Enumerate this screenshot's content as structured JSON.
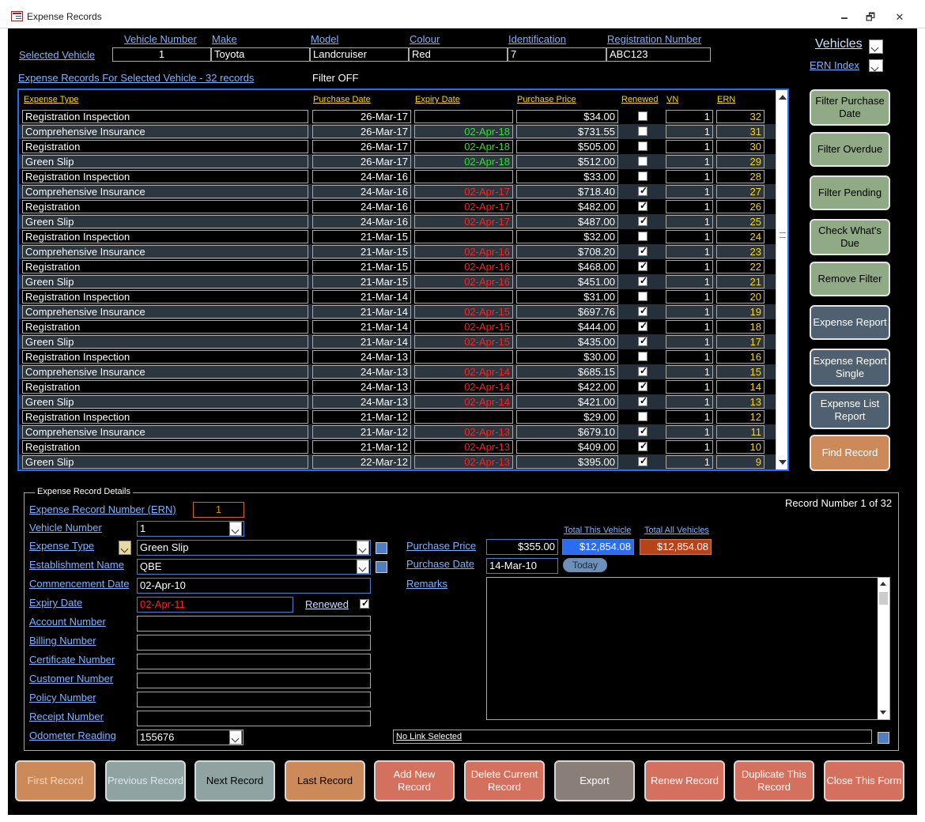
{
  "window": {
    "title": "Expense Records",
    "minimize": "🗕",
    "restore": "🗗",
    "close": "✕"
  },
  "header": {
    "selected_vehicle_label": "Selected Vehicle",
    "columns": [
      "Vehicle Number",
      "Make",
      "Model",
      "Colour",
      "Identification",
      "Registration Number"
    ],
    "values": [
      "1",
      "Toyota",
      "Landcruiser",
      "Red",
      "7",
      "ABC123"
    ],
    "vehicles_label": "Vehicles",
    "ern_index_label": "ERN Index",
    "records_caption": "Expense Records For Selected Vehicle - 32 records",
    "filter_status": "Filter OFF"
  },
  "grid": {
    "headers": [
      "Expense Type",
      "Purchase Date",
      "Expiry Date",
      "Purchase Price",
      "Renewed",
      "VN",
      "ERN"
    ],
    "rows": [
      {
        "type": "Registration Inspection",
        "pdate": "26-Mar-17",
        "edate": "",
        "ecolor": "",
        "price": "$34.00",
        "renewed": false,
        "vn": "1",
        "ern": "32"
      },
      {
        "type": "Comprehensive Insurance",
        "pdate": "26-Mar-17",
        "edate": "02-Apr-18",
        "ecolor": "#2ee02e",
        "price": "$731.55",
        "renewed": false,
        "vn": "1",
        "ern": "31"
      },
      {
        "type": "Registration",
        "pdate": "26-Mar-17",
        "edate": "02-Apr-18",
        "ecolor": "#2ee02e",
        "price": "$505.00",
        "renewed": false,
        "vn": "1",
        "ern": "30"
      },
      {
        "type": "Green Slip",
        "pdate": "26-Mar-17",
        "edate": "02-Apr-18",
        "ecolor": "#2ee02e",
        "price": "$512.00",
        "renewed": false,
        "vn": "1",
        "ern": "29"
      },
      {
        "type": "Registration Inspection",
        "pdate": "24-Mar-16",
        "edate": "",
        "ecolor": "",
        "price": "$33.00",
        "renewed": false,
        "vn": "1",
        "ern": "28"
      },
      {
        "type": "Comprehensive Insurance",
        "pdate": "24-Mar-16",
        "edate": "02-Apr-17",
        "ecolor": "#ff2020",
        "price": "$718.40",
        "renewed": true,
        "vn": "1",
        "ern": "27"
      },
      {
        "type": "Registration",
        "pdate": "24-Mar-16",
        "edate": "02-Apr-17",
        "ecolor": "#ff2020",
        "price": "$482.00",
        "renewed": true,
        "vn": "1",
        "ern": "26"
      },
      {
        "type": "Green Slip",
        "pdate": "24-Mar-16",
        "edate": "02-Apr-17",
        "ecolor": "#ff2020",
        "price": "$487.00",
        "renewed": true,
        "vn": "1",
        "ern": "25"
      },
      {
        "type": "Registration Inspection",
        "pdate": "21-Mar-15",
        "edate": "",
        "ecolor": "",
        "price": "$32.00",
        "renewed": false,
        "vn": "1",
        "ern": "24"
      },
      {
        "type": "Comprehensive Insurance",
        "pdate": "21-Mar-15",
        "edate": "02-Apr-16",
        "ecolor": "#ff2020",
        "price": "$708.20",
        "renewed": true,
        "vn": "1",
        "ern": "23"
      },
      {
        "type": "Registration",
        "pdate": "21-Mar-15",
        "edate": "02-Apr-16",
        "ecolor": "#ff2020",
        "price": "$468.00",
        "renewed": true,
        "vn": "1",
        "ern": "22"
      },
      {
        "type": "Green Slip",
        "pdate": "21-Mar-15",
        "edate": "02-Apr-16",
        "ecolor": "#ff2020",
        "price": "$451.00",
        "renewed": true,
        "vn": "1",
        "ern": "21"
      },
      {
        "type": "Registration Inspection",
        "pdate": "21-Mar-14",
        "edate": "",
        "ecolor": "",
        "price": "$31.00",
        "renewed": false,
        "vn": "1",
        "ern": "20"
      },
      {
        "type": "Comprehensive Insurance",
        "pdate": "21-Mar-14",
        "edate": "02-Apr-15",
        "ecolor": "#ff2020",
        "price": "$697.76",
        "renewed": true,
        "vn": "1",
        "ern": "19"
      },
      {
        "type": "Registration",
        "pdate": "21-Mar-14",
        "edate": "02-Apr-15",
        "ecolor": "#ff2020",
        "price": "$444.00",
        "renewed": true,
        "vn": "1",
        "ern": "18"
      },
      {
        "type": "Green Slip",
        "pdate": "21-Mar-14",
        "edate": "02-Apr-15",
        "ecolor": "#ff2020",
        "price": "$435.00",
        "renewed": true,
        "vn": "1",
        "ern": "17"
      },
      {
        "type": "Registration Inspection",
        "pdate": "24-Mar-13",
        "edate": "",
        "ecolor": "",
        "price": "$30.00",
        "renewed": false,
        "vn": "1",
        "ern": "16"
      },
      {
        "type": "Comprehensive Insurance",
        "pdate": "24-Mar-13",
        "edate": "02-Apr-14",
        "ecolor": "#ff2020",
        "price": "$685.15",
        "renewed": true,
        "vn": "1",
        "ern": "15"
      },
      {
        "type": "Registration",
        "pdate": "24-Mar-13",
        "edate": "02-Apr-14",
        "ecolor": "#ff2020",
        "price": "$422.00",
        "renewed": true,
        "vn": "1",
        "ern": "14"
      },
      {
        "type": "Green Slip",
        "pdate": "24-Mar-13",
        "edate": "02-Apr-14",
        "ecolor": "#ff2020",
        "price": "$421.00",
        "renewed": true,
        "vn": "1",
        "ern": "13"
      },
      {
        "type": "Registration Inspection",
        "pdate": "21-Mar-12",
        "edate": "",
        "ecolor": "",
        "price": "$29.00",
        "renewed": false,
        "vn": "1",
        "ern": "12"
      },
      {
        "type": "Comprehensive Insurance",
        "pdate": "21-Mar-12",
        "edate": "02-Apr-13",
        "ecolor": "#ff2020",
        "price": "$679.10",
        "renewed": true,
        "vn": "1",
        "ern": "11"
      },
      {
        "type": "Registration",
        "pdate": "21-Mar-12",
        "edate": "02-Apr-13",
        "ecolor": "#ff2020",
        "price": "$409.00",
        "renewed": true,
        "vn": "1",
        "ern": "10"
      },
      {
        "type": "Green Slip",
        "pdate": "22-Mar-12",
        "edate": "02-Apr-13",
        "ecolor": "#ff2020",
        "price": "$395.00",
        "renewed": true,
        "vn": "1",
        "ern": "9"
      }
    ]
  },
  "side_buttons": [
    {
      "label": "Filter Purchase Date",
      "style": "green"
    },
    {
      "label": "Filter Overdue",
      "style": "green"
    },
    {
      "label": "Filter Pending",
      "style": "green"
    },
    {
      "label": "Check What's Due",
      "style": "green"
    },
    {
      "label": "Remove Filter",
      "style": "green"
    },
    {
      "label": "Expense Report",
      "style": "slate"
    },
    {
      "label": "Expense Report Single",
      "style": "slate"
    },
    {
      "label": "Expense List Report",
      "style": "slate"
    },
    {
      "label": "Find Record",
      "style": "orange"
    }
  ],
  "details": {
    "legend": "Expense Record Details",
    "record_number": "Record Number 1 of 32",
    "ern_label": "Expense Record Number (ERN)",
    "ern_value": "1",
    "vehicle_number_label": "Vehicle Number",
    "vehicle_number_value": "1",
    "expense_type_label": "Expense Type",
    "expense_type_value": "Green Slip",
    "establishment_label": "Establishment Name",
    "establishment_value": "QBE",
    "commencement_label": "Commencement Date",
    "commencement_value": "02-Apr-10",
    "expiry_label": "Expiry Date",
    "expiry_value": "02-Apr-11",
    "renewed_label": "Renewed",
    "account_label": "Account Number",
    "billing_label": "Billing Number",
    "certificate_label": "Certificate Number",
    "customer_label": "Customer Number",
    "policy_label": "Policy Number",
    "receipt_label": "Receipt Number",
    "odometer_label": "Odometer Reading",
    "odometer_value": "155676",
    "total_vehicle_label": "Total This Vehicle",
    "total_all_label": "Total All Vehicles",
    "purchase_price_label": "Purchase Price",
    "purchase_price_value": "$355.00",
    "total_vehicle_value": "$12,854.08",
    "total_all_value": "$12,854.08",
    "purchase_date_label": "Purchase Date",
    "purchase_date_value": "14-Mar-10",
    "today_label": "Today",
    "remarks_label": "Remarks",
    "link_value": "No Link Selected"
  },
  "bottom_buttons": [
    {
      "label": "First Record",
      "bg": "#cc8a5a",
      "fg": "#f0d8c0"
    },
    {
      "label": "Previous Record",
      "bg": "#8fa3a3",
      "fg": "#dde6e6"
    },
    {
      "label": "Next Record",
      "bg": "#8fa3a3",
      "fg": "#000000"
    },
    {
      "label": "Last Record",
      "bg": "#cc8a5a",
      "fg": "#000000"
    },
    {
      "label": "Add New Record",
      "bg": "#d4705e",
      "fg": "#ffffff"
    },
    {
      "label": "Delete  Current Record",
      "bg": "#d4705e",
      "fg": "#ffffff"
    },
    {
      "label": "Export",
      "bg": "#8a7f78",
      "fg": "#ffffff"
    },
    {
      "label": "Renew Record",
      "bg": "#d4705e",
      "fg": "#ffffff"
    },
    {
      "label": "Duplicate This Record",
      "bg": "#d4705e",
      "fg": "#ffffff"
    },
    {
      "label": "Close This Form",
      "bg": "#d4705e",
      "fg": "#ffffff"
    }
  ]
}
